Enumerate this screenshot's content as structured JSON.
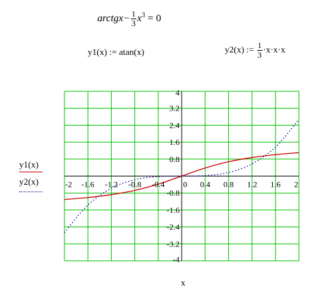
{
  "equation": {
    "lhs": "arctgx",
    "minus": "−",
    "frac_num": "1",
    "frac_den": "3",
    "var": "x",
    "power": "3",
    "rhs": " = 0"
  },
  "defs": {
    "y1": "y1(x) := atan(x)",
    "y2_left": "y2(x) :=",
    "y2_num": "1",
    "y2_den": "3",
    "y2_right": "·x·x·x"
  },
  "chart_data": {
    "type": "line",
    "xlabel": "x",
    "xlim": [
      -2,
      2
    ],
    "ylim": [
      -4,
      4
    ],
    "x_ticks": [
      "-2",
      "-1.6",
      "-1.2",
      "-0.8",
      "-0.4",
      "0",
      "0.4",
      "0.8",
      "1.2",
      "1.6",
      "2"
    ],
    "y_ticks": [
      "4",
      "3.2",
      "2.4",
      "1.6",
      "0.8",
      "0",
      "-0.8",
      "-1.6",
      "-2.4",
      "-3.2",
      "-4"
    ],
    "grid": true,
    "grid_color": "#00c000",
    "series": [
      {
        "name": "y1(x)",
        "color": "#cc0000",
        "style": "solid",
        "x": [
          -2,
          -1.6,
          -1.2,
          -0.8,
          -0.4,
          0,
          0.4,
          0.8,
          1.2,
          1.6,
          2
        ],
        "values": [
          -1.107,
          -1.012,
          -0.876,
          -0.675,
          -0.381,
          0,
          0.381,
          0.675,
          0.876,
          1.012,
          1.107
        ]
      },
      {
        "name": "y2(x)",
        "color": "#000099",
        "style": "dotted",
        "x": [
          -2,
          -1.6,
          -1.2,
          -0.8,
          -0.4,
          0,
          0.4,
          0.8,
          1.2,
          1.6,
          2
        ],
        "values": [
          -2.667,
          -1.365,
          -0.576,
          -0.171,
          -0.021,
          0,
          0.021,
          0.171,
          0.576,
          1.365,
          2.667
        ]
      }
    ]
  }
}
